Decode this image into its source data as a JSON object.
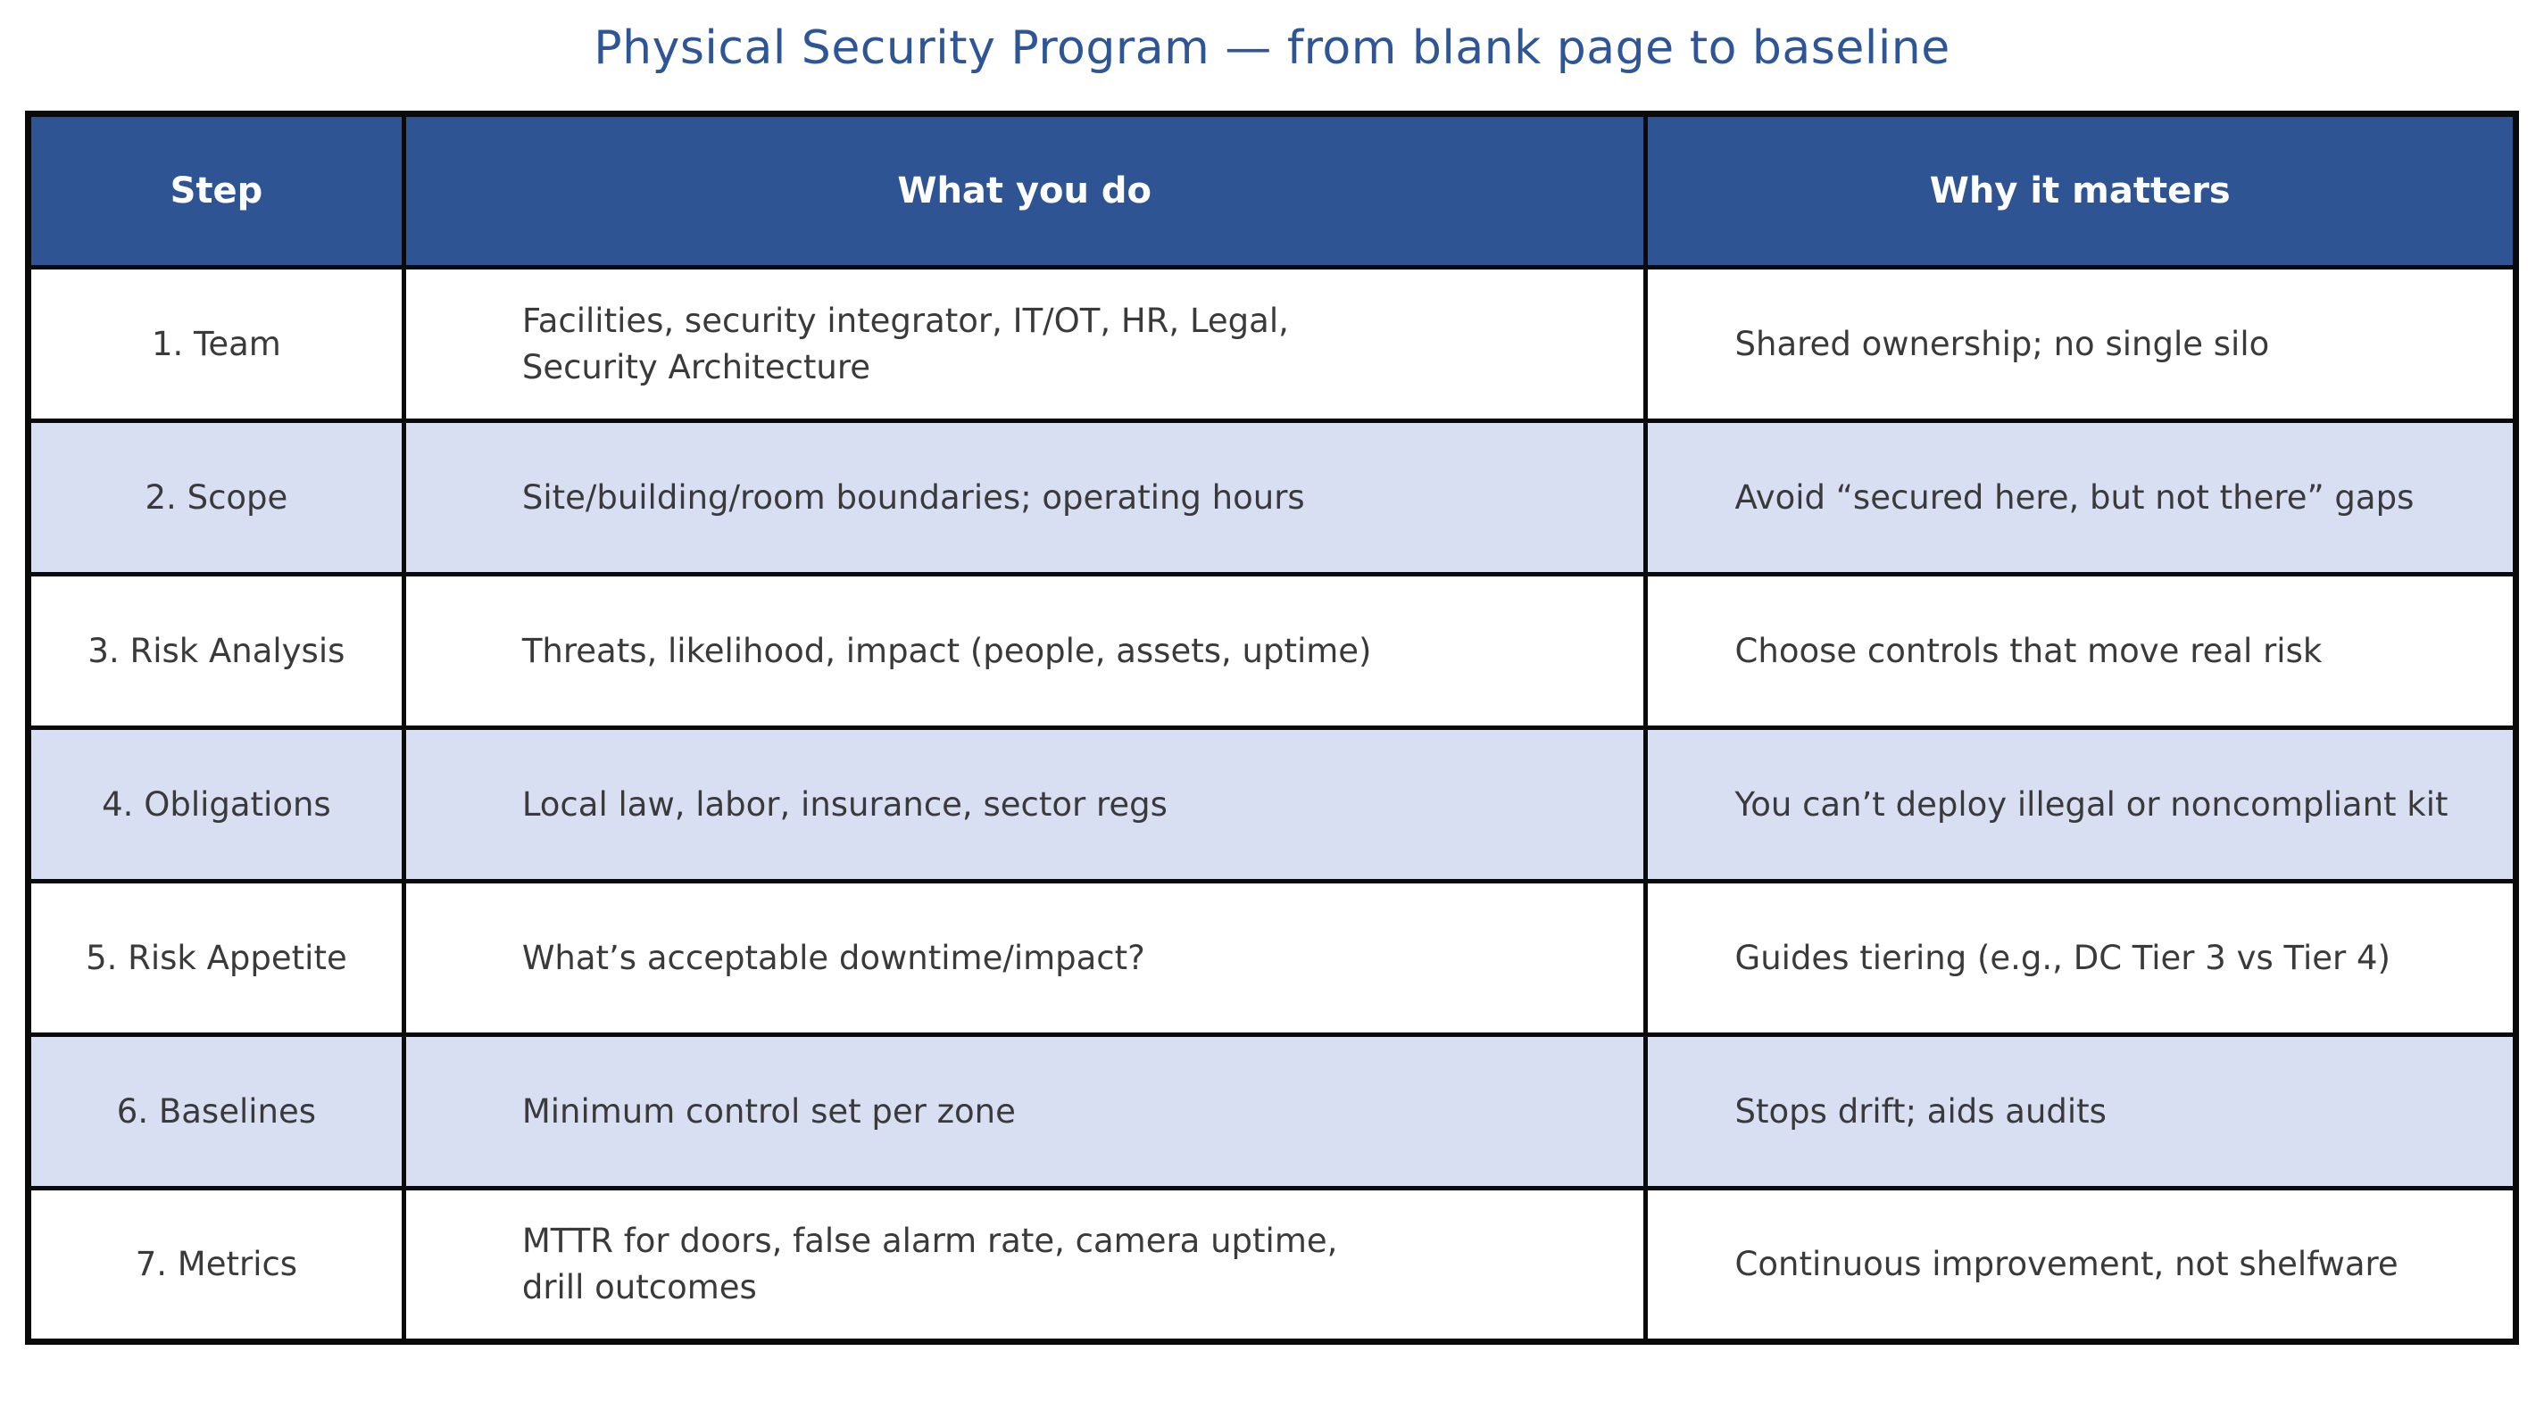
{
  "chart_data": {
    "type": "table",
    "title": "Physical Security Program — from blank page to baseline",
    "columns": [
      "Step",
      "What you do",
      "Why it matters"
    ],
    "rows": [
      [
        "1. Team",
        "Facilities, security integrator, IT/OT, HR, Legal,\nSecurity Architecture",
        "Shared ownership; no single silo"
      ],
      [
        "2. Scope",
        "Site/building/room boundaries; operating hours",
        "Avoid “secured here, but not there” gaps"
      ],
      [
        "3. Risk Analysis",
        "Threats, likelihood, impact (people, assets, uptime)",
        "Choose controls that move real risk"
      ],
      [
        "4. Obligations",
        "Local law, labor, insurance, sector regs",
        "You can’t deploy illegal or noncompliant kit"
      ],
      [
        "5. Risk Appetite",
        "What’s acceptable downtime/impact?",
        "Guides tiering (e.g., DC Tier 3 vs Tier 4)"
      ],
      [
        "6. Baselines",
        "Minimum control set per zone",
        "Stops drift; aids audits"
      ],
      [
        "7. Metrics",
        "MTTR for doors, false alarm rate, camera uptime,\ndrill outcomes",
        "Continuous improvement, not shelfware"
      ]
    ],
    "layout": {
      "banded_rows": "even rows shaded lavender",
      "grid": "full black grid borders",
      "header_style": "dark blue background, white bold text"
    }
  },
  "colors": {
    "header_bg": "#2e5494",
    "header_text": "#ffffff",
    "band_bg": "#d9dff3",
    "row_bg": "#ffffff",
    "title_text": "#2e5596",
    "body_text": "#3a3a3a",
    "border": "#0a0a0a",
    "page_bg": "#ffffff"
  }
}
